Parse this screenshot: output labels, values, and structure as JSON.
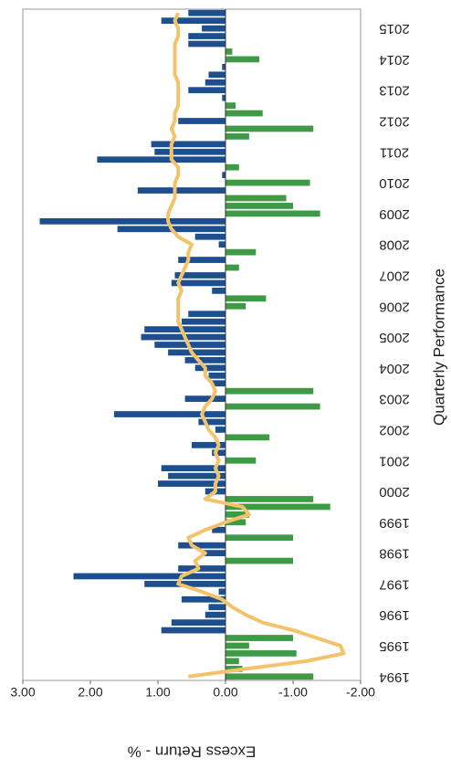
{
  "chart_data": {
    "type": "bar",
    "title": "Quarterly Performance",
    "value_axis_label": "Excess Return - %",
    "categories": [
      "1994",
      null,
      null,
      null,
      "1995",
      null,
      null,
      null,
      "1996",
      null,
      null,
      null,
      "1997",
      null,
      null,
      null,
      "1998",
      null,
      null,
      null,
      "1999",
      null,
      null,
      null,
      "2000",
      null,
      null,
      null,
      "2001",
      null,
      null,
      null,
      "2002",
      null,
      null,
      null,
      "2003",
      null,
      null,
      null,
      "2004",
      null,
      null,
      null,
      "2005",
      null,
      null,
      null,
      "2006",
      null,
      null,
      null,
      "2007",
      null,
      null,
      null,
      "2008",
      null,
      null,
      null,
      "2009",
      null,
      null,
      null,
      "2010",
      null,
      null,
      null,
      "2011",
      null,
      null,
      null,
      "2012",
      null,
      null,
      null,
      "2013",
      null,
      null,
      null,
      "2014",
      null,
      null,
      null,
      "2015",
      null,
      null
    ],
    "values": [
      -1.3,
      -0.25,
      -0.2,
      -1.05,
      -0.35,
      -1.0,
      0.95,
      0.8,
      0.3,
      0.25,
      0.65,
      0.1,
      1.2,
      2.25,
      0.7,
      -1.0,
      0.35,
      0.7,
      -1.0,
      0.2,
      -0.3,
      -0.35,
      -1.55,
      -1.3,
      0.3,
      1.0,
      0.85,
      0.95,
      -0.45,
      0.2,
      0.5,
      -0.65,
      0.15,
      0.4,
      1.65,
      -1.4,
      0.6,
      -1.3,
      0.2,
      0.25,
      0.45,
      0.6,
      0.85,
      1.05,
      1.25,
      1.2,
      0.65,
      0.55,
      -0.3,
      -0.6,
      0.2,
      0.8,
      0.75,
      -0.2,
      0.7,
      -0.45,
      0.1,
      0.45,
      1.6,
      2.75,
      -1.4,
      -1.0,
      -0.9,
      1.3,
      -1.25,
      0.05,
      -0.2,
      1.9,
      1.05,
      1.1,
      -0.35,
      -1.3,
      0.7,
      -0.55,
      -0.15,
      0.05,
      0.55,
      0.3,
      0.25,
      0.05,
      -0.5,
      -0.1,
      0.55,
      0.55,
      0.35,
      0.95,
      0.55
    ],
    "positive_color": "#1d4f8f",
    "negative_color": "#3f9a45",
    "line": {
      "type": "line",
      "color": "#f3c36b",
      "values": [
        0.55,
        -0.3,
        -1.2,
        -1.75,
        -1.7,
        -1.35,
        -1.0,
        -0.55,
        -0.3,
        -0.1,
        0.05,
        0.35,
        0.7,
        0.65,
        0.4,
        0.45,
        0.3,
        0.5,
        0.55,
        0.3,
        0.0,
        -0.35,
        -0.25,
        0.3,
        0.15,
        0.15,
        0.1,
        0.15,
        0.1,
        0.15,
        0.1,
        0.15,
        0.25,
        0.3,
        0.35,
        0.3,
        0.2,
        0.15,
        0.2,
        0.3,
        0.3,
        0.4,
        0.5,
        0.55,
        0.6,
        0.65,
        0.7,
        0.7,
        0.7,
        0.7,
        0.65,
        0.7,
        0.65,
        0.6,
        0.55,
        0.55,
        0.5,
        0.7,
        0.8,
        0.85,
        0.85,
        0.8,
        0.75,
        0.75,
        0.75,
        0.7,
        0.7,
        0.8,
        0.8,
        0.8,
        0.75,
        0.8,
        0.75,
        0.75,
        0.7,
        0.7,
        0.7,
        0.7,
        0.75,
        0.75,
        0.75,
        0.75,
        0.75,
        0.7,
        0.7,
        0.75,
        0.7
      ]
    },
    "ylim": [
      3,
      -2
    ],
    "yticks": [
      {
        "value": 3,
        "label": "3.00"
      },
      {
        "value": 2,
        "label": "2.00"
      },
      {
        "value": 1,
        "label": "1.00"
      },
      {
        "value": 0,
        "label": "0.00"
      },
      {
        "value": -1,
        "label": "-1.00"
      },
      {
        "value": -2,
        "label": "-2.00"
      }
    ]
  }
}
